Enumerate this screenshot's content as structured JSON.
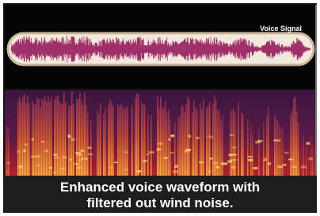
{
  "header": {
    "label": "Voice Signal"
  },
  "caption": {
    "lines": [
      "Enhanced voice waveform with",
      "filtered out wind noise."
    ]
  }
}
